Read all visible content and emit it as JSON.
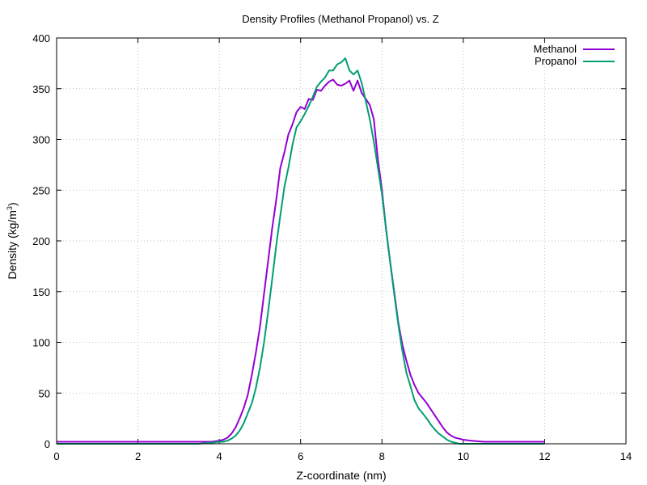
{
  "chart_data": {
    "type": "line",
    "title": "Density Profiles (Methanol  Propanol) vs. Z",
    "xlabel": "Z-coordinate (nm)",
    "ylabel": "Density (kg/m",
    "ylabel_sup": "3",
    "ylabel_close": ")",
    "xlim": [
      0,
      14
    ],
    "ylim": [
      0,
      400
    ],
    "xticks": [
      "0",
      "2",
      "4",
      "6",
      "8",
      "10",
      "12",
      "14"
    ],
    "yticks": [
      "0",
      "50",
      "100",
      "150",
      "200",
      "250",
      "300",
      "350",
      "400"
    ],
    "grid": true,
    "legend_position": "top-right",
    "series": [
      {
        "name": "Methanol",
        "color": "#9400d3",
        "x": [
          0,
          0.5,
          1,
          1.5,
          2,
          2.5,
          3,
          3.5,
          3.8,
          4,
          4.1,
          4.2,
          4.3,
          4.4,
          4.5,
          4.6,
          4.7,
          4.8,
          4.9,
          5,
          5.1,
          5.2,
          5.3,
          5.4,
          5.5,
          5.6,
          5.7,
          5.8,
          5.9,
          6,
          6.1,
          6.2,
          6.3,
          6.4,
          6.5,
          6.6,
          6.7,
          6.8,
          6.9,
          7,
          7.1,
          7.2,
          7.3,
          7.4,
          7.5,
          7.6,
          7.7,
          7.8,
          7.9,
          8,
          8.1,
          8.2,
          8.3,
          8.4,
          8.5,
          8.6,
          8.7,
          8.8,
          8.9,
          9,
          9.1,
          9.2,
          9.3,
          9.4,
          9.5,
          9.6,
          9.7,
          9.8,
          9.9,
          10,
          10.2,
          10.5,
          11,
          11.5,
          12
        ],
        "y": [
          2,
          2,
          2,
          2,
          2,
          2,
          2,
          2,
          2,
          3,
          4,
          6,
          10,
          16,
          25,
          35,
          48,
          68,
          90,
          115,
          148,
          180,
          212,
          240,
          272,
          287,
          305,
          315,
          327,
          332,
          330,
          340,
          339,
          349,
          348,
          353,
          357,
          359,
          354,
          353,
          355,
          358,
          348,
          358,
          346,
          340,
          334,
          320,
          280,
          250,
          212,
          180,
          150,
          120,
          98,
          82,
          68,
          58,
          50,
          45,
          40,
          34,
          28,
          22,
          16,
          11,
          8,
          6,
          5,
          4,
          3,
          2,
          2,
          2,
          2
        ]
      },
      {
        "name": "Propanol",
        "color": "#009e73",
        "x": [
          0,
          0.5,
          1,
          1.5,
          2,
          2.5,
          3,
          3.5,
          3.8,
          4,
          4.1,
          4.2,
          4.3,
          4.4,
          4.5,
          4.6,
          4.7,
          4.8,
          4.9,
          5,
          5.1,
          5.2,
          5.3,
          5.4,
          5.5,
          5.6,
          5.7,
          5.8,
          5.9,
          6,
          6.1,
          6.2,
          6.3,
          6.4,
          6.5,
          6.6,
          6.7,
          6.8,
          6.9,
          7,
          7.1,
          7.2,
          7.3,
          7.4,
          7.5,
          7.6,
          7.7,
          7.8,
          7.9,
          8,
          8.1,
          8.2,
          8.3,
          8.4,
          8.5,
          8.6,
          8.7,
          8.8,
          8.9,
          9,
          9.1,
          9.2,
          9.3,
          9.4,
          9.5,
          9.6,
          9.7,
          9.8,
          9.9,
          10,
          10.2,
          10.5,
          11,
          11.5,
          12
        ],
        "y": [
          0,
          0,
          0,
          0,
          0,
          0,
          0,
          0,
          1,
          2,
          2,
          3,
          5,
          8,
          13,
          20,
          30,
          40,
          55,
          75,
          100,
          130,
          162,
          195,
          225,
          253,
          272,
          295,
          312,
          318,
          325,
          333,
          342,
          352,
          357,
          361,
          368,
          368,
          374,
          376,
          380,
          368,
          364,
          368,
          356,
          338,
          320,
          298,
          272,
          246,
          212,
          180,
          148,
          118,
          92,
          70,
          57,
          43,
          35,
          30,
          25,
          19,
          14,
          10,
          7,
          4,
          2,
          1,
          0,
          0,
          0,
          0,
          0,
          0,
          0
        ]
      }
    ]
  }
}
